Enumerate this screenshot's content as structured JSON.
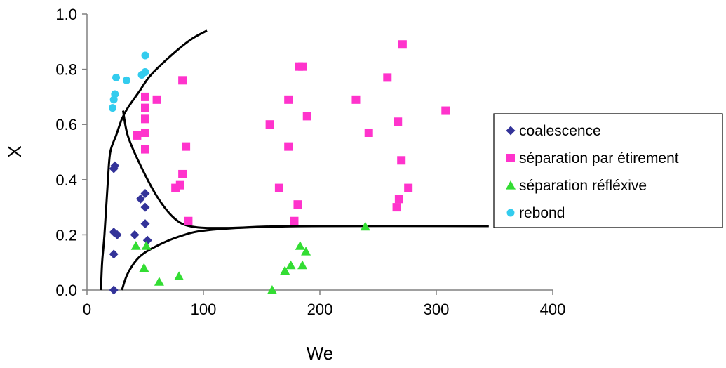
{
  "chart_data": {
    "type": "scatter",
    "title": "",
    "xlabel": "We",
    "ylabel": "X",
    "xlim": [
      0,
      400
    ],
    "ylim": [
      0,
      1.0
    ],
    "x_ticks": [
      "0",
      "100",
      "200",
      "300",
      "400"
    ],
    "y_ticks": [
      "0.0",
      "0.2",
      "0.4",
      "0.6",
      "0.8",
      "1.0"
    ],
    "grid": false,
    "legend_position": "right",
    "series": [
      {
        "name": "coalescence",
        "marker": "diamond",
        "color": "#333399",
        "points": [
          [
            23,
            0.44
          ],
          [
            24,
            0.45
          ],
          [
            23,
            0.21
          ],
          [
            26,
            0.2
          ],
          [
            23,
            0.13
          ],
          [
            23,
            0.0
          ],
          [
            41,
            0.2
          ],
          [
            46,
            0.33
          ],
          [
            50,
            0.35
          ],
          [
            50,
            0.3
          ],
          [
            50,
            0.24
          ],
          [
            52,
            0.18
          ]
        ]
      },
      {
        "name": "séparation par étirement",
        "marker": "square",
        "color": "#ff33cc",
        "points": [
          [
            50,
            0.7
          ],
          [
            50,
            0.66
          ],
          [
            50,
            0.62
          ],
          [
            50,
            0.57
          ],
          [
            50,
            0.51
          ],
          [
            43,
            0.56
          ],
          [
            60,
            0.69
          ],
          [
            76,
            0.37
          ],
          [
            80,
            0.38
          ],
          [
            82,
            0.76
          ],
          [
            82,
            0.42
          ],
          [
            85,
            0.52
          ],
          [
            87,
            0.25
          ],
          [
            157,
            0.6
          ],
          [
            165,
            0.37
          ],
          [
            173,
            0.69
          ],
          [
            173,
            0.52
          ],
          [
            178,
            0.25
          ],
          [
            181,
            0.31
          ],
          [
            182,
            0.81
          ],
          [
            185,
            0.81
          ],
          [
            189,
            0.63
          ],
          [
            231,
            0.69
          ],
          [
            242,
            0.57
          ],
          [
            258,
            0.77
          ],
          [
            266,
            0.3
          ],
          [
            267,
            0.61
          ],
          [
            268,
            0.33
          ],
          [
            270,
            0.47
          ],
          [
            271,
            0.89
          ],
          [
            276,
            0.37
          ],
          [
            308,
            0.65
          ]
        ]
      },
      {
        "name": "séparation réfléxive",
        "marker": "triangle",
        "color": "#33dd33",
        "points": [
          [
            42,
            0.16
          ],
          [
            49,
            0.08
          ],
          [
            51,
            0.16
          ],
          [
            62,
            0.03
          ],
          [
            79,
            0.05
          ],
          [
            159,
            0.0
          ],
          [
            170,
            0.07
          ],
          [
            175,
            0.09
          ],
          [
            183,
            0.16
          ],
          [
            185,
            0.09
          ],
          [
            188,
            0.14
          ],
          [
            239,
            0.23
          ]
        ]
      },
      {
        "name": "rebond",
        "marker": "circle",
        "color": "#33ccee",
        "points": [
          [
            22,
            0.66
          ],
          [
            23,
            0.69
          ],
          [
            24,
            0.71
          ],
          [
            25,
            0.77
          ],
          [
            34,
            0.76
          ],
          [
            47,
            0.78
          ],
          [
            50,
            0.79
          ],
          [
            50,
            0.85
          ]
        ]
      }
    ],
    "curves": [
      {
        "name": "boundary-coalescence-rebond",
        "points": [
          [
            12,
            0.0
          ],
          [
            13,
            0.1
          ],
          [
            15,
            0.2
          ],
          [
            18,
            0.4
          ],
          [
            20,
            0.5
          ],
          [
            25,
            0.56
          ],
          [
            30,
            0.62
          ],
          [
            35,
            0.66
          ],
          [
            45,
            0.72
          ],
          [
            55,
            0.78
          ],
          [
            75,
            0.86
          ],
          [
            90,
            0.91
          ],
          [
            103,
            0.94
          ]
        ]
      },
      {
        "name": "boundary-coalescence-etirement",
        "points": [
          [
            31,
            0.65
          ],
          [
            35,
            0.56
          ],
          [
            45,
            0.46
          ],
          [
            60,
            0.34
          ],
          [
            75,
            0.26
          ],
          [
            90,
            0.23
          ],
          [
            120,
            0.225
          ],
          [
            180,
            0.232
          ],
          [
            345,
            0.232
          ]
        ]
      },
      {
        "name": "boundary-coalescence-reflexive",
        "points": [
          [
            30,
            0.0
          ],
          [
            35,
            0.06
          ],
          [
            45,
            0.12
          ],
          [
            60,
            0.16
          ],
          [
            80,
            0.195
          ],
          [
            100,
            0.215
          ],
          [
            140,
            0.227
          ],
          [
            200,
            0.232
          ],
          [
            345,
            0.232
          ]
        ]
      }
    ]
  }
}
